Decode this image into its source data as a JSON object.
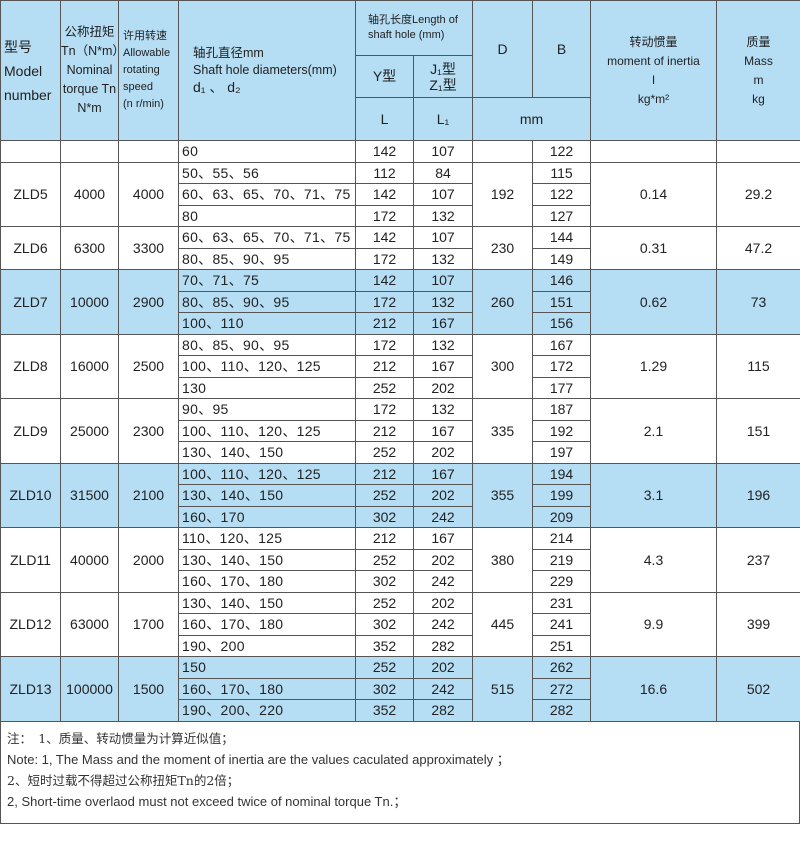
{
  "header": {
    "model": [
      "型号",
      "Model",
      "number"
    ],
    "torque": [
      "公称扭矩",
      "Tn（N*m）",
      "Nominal",
      "torque Tn",
      "N*m"
    ],
    "speed": [
      "许用转速",
      "Allowable",
      "rotating",
      "speed",
      "(n r/min)"
    ],
    "diam": [
      "轴孔直径mm",
      "Shaft hole diameters(mm)",
      "d₁ 、 d₂"
    ],
    "length": [
      "轴孔长度Length of",
      "shaft hole (mm)"
    ],
    "y_type": "Y型",
    "j_type": [
      "J₁型",
      "Z₁型"
    ],
    "L": "L",
    "L1": "L₁",
    "D": "D",
    "B": "B",
    "mm": "mm",
    "inertia": [
      "转动惯量",
      "moment of inertia",
      "I",
      "kg*m²"
    ],
    "mass": [
      "质量",
      "Mass",
      "m",
      "kg"
    ]
  },
  "highlight_color": "#b5ddf4",
  "groups": [
    {
      "model": "",
      "torque": "",
      "speed": "",
      "D": "",
      "inertia": "",
      "mass": "",
      "highlight": false,
      "diam": [
        {
          "d": "60",
          "L": "142",
          "L1": "107",
          "span": 1
        }
      ],
      "B": [
        {
          "v": "122",
          "span": 1
        }
      ]
    },
    {
      "model": "ZLD5",
      "torque": "4000",
      "speed": "4000",
      "D": "192",
      "inertia": "0.14",
      "mass": "29.2",
      "highlight": false,
      "diam": [
        {
          "d": "50、55、56",
          "L": "112",
          "L1": "84",
          "span": 1
        },
        {
          "d": "60、63、65、70、71、75",
          "L": "142",
          "L1": "107",
          "span": 1
        },
        {
          "d": "80",
          "L": "172",
          "L1": "132",
          "span": 1
        }
      ],
      "B": [
        {
          "v": "115",
          "span": 1
        },
        {
          "v": "122",
          "span": 1
        },
        {
          "v": "127",
          "span": 1
        }
      ]
    },
    {
      "model": "ZLD6",
      "torque": "6300",
      "speed": "3300",
      "D": "230",
      "inertia": "0.31",
      "mass": "47.2",
      "highlight": false,
      "diam": [
        {
          "d": "60、63、65、70、71、75",
          "L": "142",
          "L1": "107",
          "span": 2
        },
        {
          "d": "80、85、90、95",
          "L": "172",
          "L1": "132",
          "span": 1
        }
      ],
      "B": [
        {
          "v": "144",
          "span": 1
        },
        {
          "v": "149",
          "span": 2
        }
      ]
    },
    {
      "model": "ZLD7",
      "torque": "10000",
      "speed": "2900",
      "D": "260",
      "inertia": "0.62",
      "mass": "73",
      "highlight": true,
      "diam": [
        {
          "d": "70、71、75",
          "L": "142",
          "L1": "107",
          "span": 1
        },
        {
          "d": "80、85、90、95",
          "L": "172",
          "L1": "132",
          "span": 1
        },
        {
          "d": "100、110",
          "L": "212",
          "L1": "167",
          "span": 1
        }
      ],
      "B": [
        {
          "v": "146",
          "span": 1
        },
        {
          "v": "151",
          "span": 1
        },
        {
          "v": "156",
          "span": 1
        }
      ]
    },
    {
      "model": "ZLD8",
      "torque": "16000",
      "speed": "2500",
      "D": "300",
      "inertia": "1.29",
      "mass": "115",
      "highlight": false,
      "diam": [
        {
          "d": "80、85、90、95",
          "L": "172",
          "L1": "132",
          "span": 1
        },
        {
          "d": "100、110、120、125",
          "L": "212",
          "L1": "167",
          "span": 1
        },
        {
          "d": "130",
          "L": "252",
          "L1": "202",
          "span": 1
        }
      ],
      "B": [
        {
          "v": "167",
          "span": 1
        },
        {
          "v": "172",
          "span": 1
        },
        {
          "v": "177",
          "span": 1
        }
      ]
    },
    {
      "model": "ZLD9",
      "torque": "25000",
      "speed": "2300",
      "D": "335",
      "inertia": "2.1",
      "mass": "151",
      "highlight": false,
      "diam": [
        {
          "d": "90、95",
          "L": "172",
          "L1": "132",
          "span": 1
        },
        {
          "d": "100、110、120、125",
          "L": "212",
          "L1": "167",
          "span": 1
        },
        {
          "d": "130、140、150",
          "L": "252",
          "L1": "202",
          "span": 1
        }
      ],
      "B": [
        {
          "v": "187",
          "span": 1
        },
        {
          "v": "192",
          "span": 1
        },
        {
          "v": "197",
          "span": 1
        }
      ]
    },
    {
      "model": "ZLD10",
      "torque": "31500",
      "speed": "2100",
      "D": "355",
      "inertia": "3.1",
      "mass": "196",
      "highlight": true,
      "diam": [
        {
          "d": "100、110、120、125",
          "L": "212",
          "L1": "167",
          "span": 1
        },
        {
          "d": "130、140、150",
          "L": "252",
          "L1": "202",
          "span": 1
        },
        {
          "d": "160、170",
          "L": "302",
          "L1": "242",
          "span": 1
        }
      ],
      "B": [
        {
          "v": "194",
          "span": 1
        },
        {
          "v": "199",
          "span": 1
        },
        {
          "v": "209",
          "span": 1
        }
      ]
    },
    {
      "model": "ZLD11",
      "torque": "40000",
      "speed": "2000",
      "D": "380",
      "inertia": "4.3",
      "mass": "237",
      "highlight": false,
      "diam": [
        {
          "d": "110、120、125",
          "L": "212",
          "L1": "167",
          "span": 1
        },
        {
          "d": "130、140、150",
          "L": "252",
          "L1": "202",
          "span": 1
        },
        {
          "d": "160、170、180",
          "L": "302",
          "L1": "242",
          "span": 1
        }
      ],
      "B": [
        {
          "v": "214",
          "span": 1
        },
        {
          "v": "219",
          "span": 1
        },
        {
          "v": "229",
          "span": 1
        }
      ]
    },
    {
      "model": "ZLD12",
      "torque": "63000",
      "speed": "1700",
      "D": "445",
      "inertia": "9.9",
      "mass": "399",
      "highlight": false,
      "diam": [
        {
          "d": "130、140、150",
          "L": "252",
          "L1": "202",
          "span": 2
        },
        {
          "d": "160、170、180",
          "L": "302",
          "L1": "242",
          "span": 1
        },
        {
          "d": "190、200",
          "L": "352",
          "L1": "282",
          "span": 1
        }
      ],
      "B": [
        {
          "v": "231",
          "span": 2
        },
        {
          "v": "241",
          "span": 1
        },
        {
          "v": "251",
          "span": 1
        }
      ]
    },
    {
      "model": "ZLD13",
      "torque": "100000",
      "speed": "1500",
      "D": "515",
      "inertia": "16.6",
      "mass": "502",
      "highlight": true,
      "diam": [
        {
          "d": "150",
          "L": "252",
          "L1": "202",
          "span": 1
        },
        {
          "d": "160、170、180",
          "L": "302",
          "L1": "242",
          "span": 1
        },
        {
          "d": "190、200、220",
          "L": "352",
          "L1": "282",
          "span": 1
        }
      ],
      "B": [
        {
          "v": "262",
          "span": 1
        },
        {
          "v": "272",
          "span": 1
        },
        {
          "v": "282",
          "span": 1
        }
      ]
    }
  ],
  "notes": [
    "注：　1、质量、转动惯量为计算近似值；",
    "Note: 1, The Mass and the moment of inertia are the values caculated approximately ；",
    "2、短时过载不得超过公称扭矩Tn的2倍；",
    "2, Short-time overlaod must not exceed twice of nominal torque Tn.；"
  ]
}
